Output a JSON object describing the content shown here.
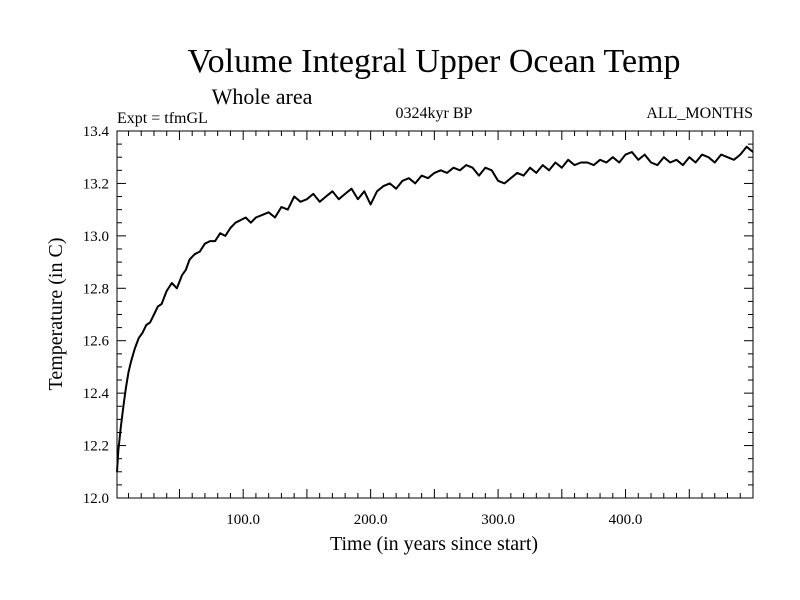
{
  "chart_data": {
    "type": "line",
    "title": "Volume Integral Upper Ocean Temp",
    "subtitle": "Whole area",
    "expt_label": "Expt = tfmGL",
    "period_label": "0324kyr BP",
    "months_label": "ALL_MONTHS",
    "xlabel": "Time (in years since start)",
    "ylabel": "Temperature (in C)",
    "xlim": [
      1,
      500
    ],
    "ylim": [
      12.0,
      13.4
    ],
    "xticks": [
      100,
      200,
      300,
      400
    ],
    "xtick_labels": [
      "100.0",
      "200.0",
      "300.0",
      "400.0"
    ],
    "yticks": [
      12.0,
      12.2,
      12.4,
      12.6,
      12.8,
      13.0,
      13.2,
      13.4
    ],
    "ytick_labels": [
      "12.0",
      "12.2",
      "12.4",
      "12.6",
      "12.8",
      "13.0",
      "13.2",
      "13.4"
    ],
    "grid": false,
    "series": [
      {
        "x": [
          1,
          2,
          4,
          6,
          8,
          10,
          12,
          15,
          18,
          21,
          24,
          27,
          30,
          33,
          36,
          40,
          44,
          48,
          52,
          55,
          58,
          62,
          66,
          70,
          74,
          78,
          82,
          86,
          90,
          94,
          98,
          102,
          106,
          110,
          115,
          120,
          125,
          130,
          135,
          140,
          145,
          150,
          155,
          160,
          165,
          170,
          175,
          180,
          185,
          190,
          195,
          200,
          205,
          210,
          215,
          220,
          225,
          230,
          235,
          240,
          245,
          250,
          255,
          260,
          265,
          270,
          275,
          280,
          285,
          290,
          295,
          300,
          305,
          310,
          315,
          320,
          325,
          330,
          335,
          340,
          345,
          350,
          355,
          360,
          365,
          370,
          375,
          380,
          385,
          390,
          395,
          400,
          405,
          410,
          415,
          420,
          425,
          430,
          435,
          440,
          445,
          450,
          455,
          460,
          465,
          470,
          475,
          480,
          485,
          490,
          495,
          500
        ],
        "y": [
          12.1,
          12.18,
          12.27,
          12.35,
          12.42,
          12.48,
          12.52,
          12.57,
          12.61,
          12.63,
          12.66,
          12.67,
          12.7,
          12.73,
          12.74,
          12.79,
          12.82,
          12.8,
          12.85,
          12.87,
          12.91,
          12.93,
          12.94,
          12.97,
          12.98,
          12.98,
          13.01,
          13.0,
          13.03,
          13.05,
          13.06,
          13.07,
          13.05,
          13.07,
          13.08,
          13.09,
          13.07,
          13.11,
          13.1,
          13.15,
          13.13,
          13.14,
          13.16,
          13.13,
          13.15,
          13.17,
          13.14,
          13.16,
          13.18,
          13.14,
          13.17,
          13.12,
          13.17,
          13.19,
          13.2,
          13.18,
          13.21,
          13.22,
          13.2,
          13.23,
          13.22,
          13.24,
          13.25,
          13.24,
          13.26,
          13.25,
          13.27,
          13.26,
          13.23,
          13.26,
          13.25,
          13.21,
          13.2,
          13.22,
          13.24,
          13.23,
          13.26,
          13.24,
          13.27,
          13.25,
          13.28,
          13.26,
          13.29,
          13.27,
          13.28,
          13.28,
          13.27,
          13.29,
          13.28,
          13.3,
          13.28,
          13.31,
          13.32,
          13.29,
          13.31,
          13.28,
          13.27,
          13.3,
          13.28,
          13.29,
          13.27,
          13.3,
          13.28,
          13.31,
          13.3,
          13.28,
          13.31,
          13.3,
          13.29,
          13.31,
          13.34,
          13.32
        ]
      }
    ]
  }
}
